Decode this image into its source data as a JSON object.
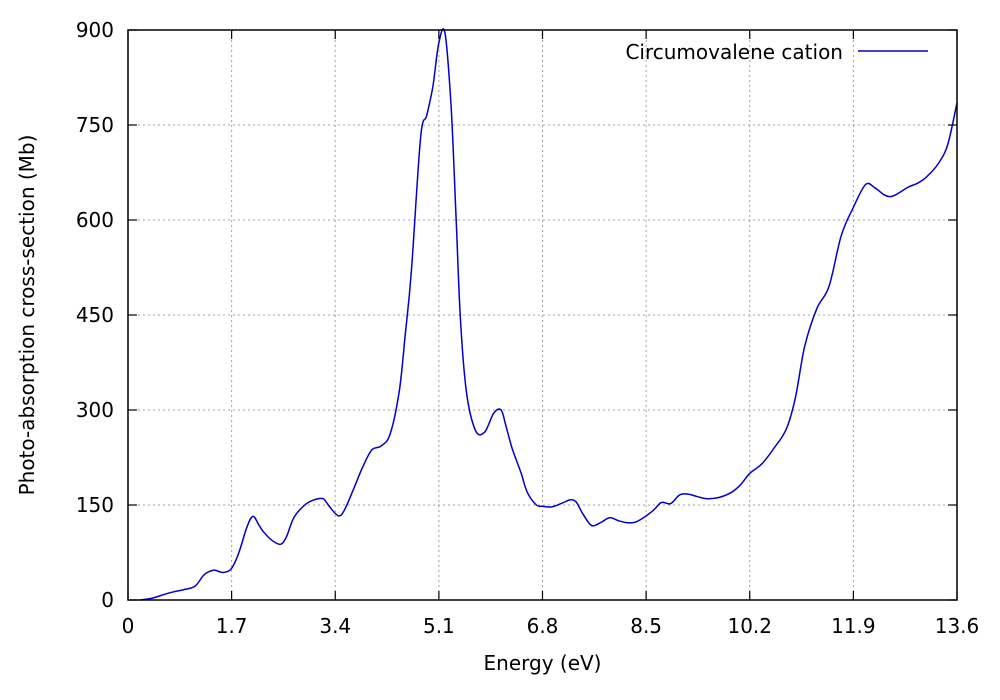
{
  "chart_data": {
    "type": "line",
    "xlabel": "Energy (eV)",
    "ylabel": "Photo-absorption cross-section (Mb)",
    "xlim": [
      0,
      13.6
    ],
    "ylim": [
      0,
      900
    ],
    "x_ticks": [
      "0",
      "1.7",
      "3.4",
      "5.1",
      "6.8",
      "8.5",
      "10.2",
      "11.9",
      "13.6"
    ],
    "y_ticks": [
      "0",
      "150",
      "300",
      "450",
      "600",
      "750",
      "900"
    ],
    "grid": true,
    "legend_position": "top-right",
    "series": [
      {
        "name": "Circumovalene cation",
        "color": "#0000cc",
        "x": [
          0.2,
          0.4,
          0.6,
          0.75,
          0.9,
          1.1,
          1.25,
          1.4,
          1.52,
          1.6,
          1.7,
          1.82,
          1.95,
          2.05,
          2.15,
          2.22,
          2.35,
          2.5,
          2.6,
          2.72,
          2.9,
          3.05,
          3.2,
          3.3,
          3.45,
          3.55,
          3.7,
          3.85,
          4.0,
          4.15,
          4.3,
          4.45,
          4.55,
          4.65,
          4.8,
          4.9,
          5.0,
          5.1,
          5.2,
          5.3,
          5.38,
          5.45,
          5.55,
          5.7,
          5.85,
          6.0,
          6.12,
          6.2,
          6.3,
          6.45,
          6.55,
          6.7,
          6.8,
          6.95,
          7.1,
          7.25,
          7.35,
          7.45,
          7.6,
          7.75,
          7.9,
          8.05,
          8.2,
          8.35,
          8.6,
          8.75,
          8.9,
          9.05,
          9.2,
          9.35,
          9.5,
          9.7,
          9.9,
          10.05,
          10.2,
          10.4,
          10.6,
          10.8,
          10.95,
          11.1,
          11.3,
          11.5,
          11.7,
          11.9,
          12.1,
          12.25,
          12.4,
          12.5,
          12.6,
          12.8,
          12.95,
          13.1,
          13.3,
          13.45,
          13.6
        ],
        "values": [
          0,
          3,
          9,
          13,
          16,
          22,
          40,
          47,
          44,
          44,
          50,
          75,
          115,
          132,
          118,
          108,
          95,
          88,
          100,
          130,
          150,
          158,
          160,
          148,
          133,
          142,
          175,
          210,
          237,
          243,
          262,
          330,
          420,
          520,
          730,
          765,
          810,
          880,
          895,
          780,
          610,
          450,
          330,
          268,
          265,
          295,
          300,
          275,
          240,
          200,
          170,
          150,
          148,
          147,
          152,
          158,
          155,
          138,
          118,
          122,
          130,
          125,
          122,
          124,
          140,
          154,
          152,
          166,
          167,
          163,
          160,
          162,
          170,
          182,
          200,
          215,
          240,
          270,
          320,
          400,
          460,
          495,
          575,
          620,
          656,
          651,
          640,
          637,
          640,
          652,
          658,
          668,
          690,
          720,
          785
        ]
      }
    ]
  }
}
